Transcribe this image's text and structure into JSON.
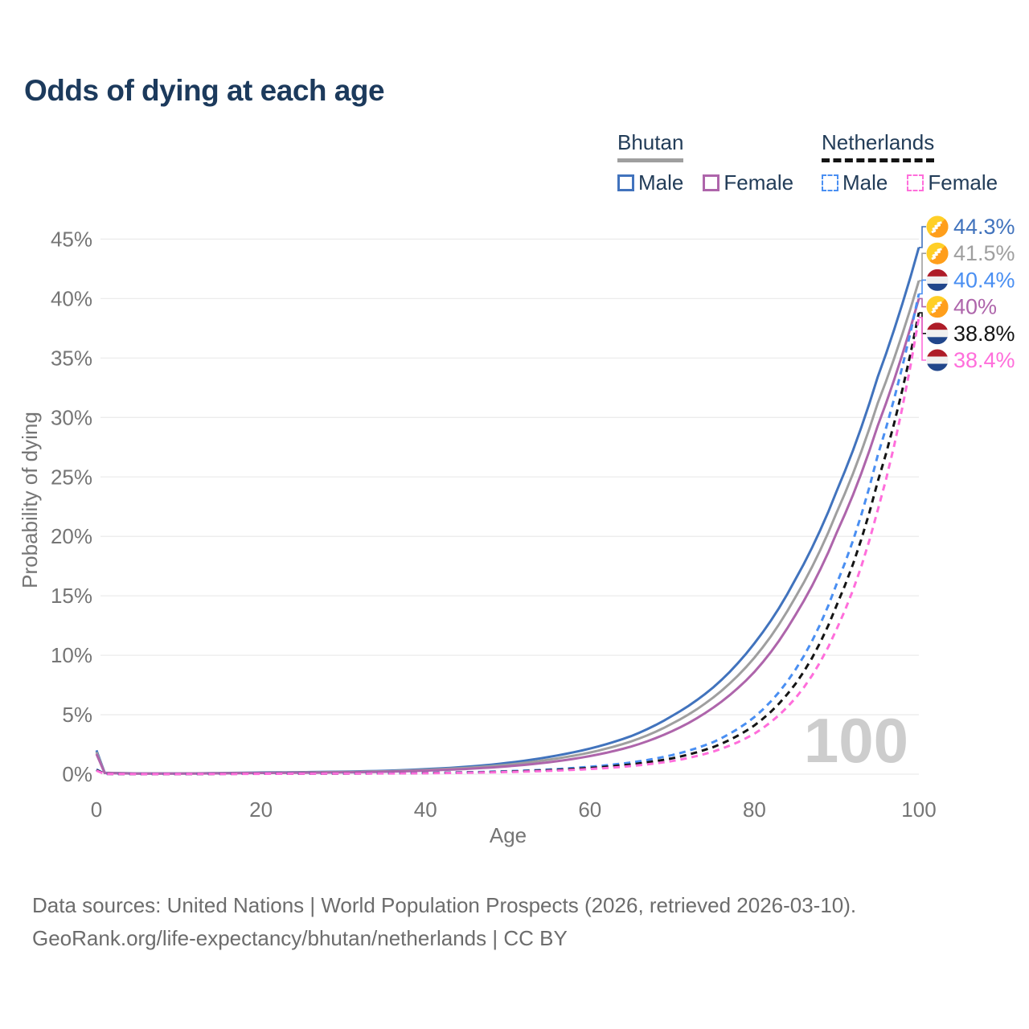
{
  "title": "Odds of dying at each age",
  "legend": {
    "groups": [
      {
        "country": "Bhutan",
        "line_style": "solid",
        "items": [
          {
            "label": "Male"
          },
          {
            "label": "Female"
          }
        ]
      },
      {
        "country": "Netherlands",
        "line_style": "dashed",
        "items": [
          {
            "label": "Male"
          },
          {
            "label": "Female"
          }
        ]
      }
    ]
  },
  "chart_data": {
    "type": "line",
    "title": "Odds of dying at each age",
    "xlabel": "Age",
    "ylabel": "Probability of dying",
    "xlim": [
      0,
      100
    ],
    "ylim": [
      0,
      47
    ],
    "x_ticks": [
      0,
      20,
      40,
      60,
      80,
      100
    ],
    "y_ticks": [
      "0%",
      "5%",
      "10%",
      "15%",
      "20%",
      "25%",
      "30%",
      "35%",
      "40%",
      "45%"
    ],
    "grid": "horizontal",
    "legend_position": "top-right",
    "age_marker": "100",
    "series": [
      {
        "name": "Bhutan — Male",
        "country": "Bhutan",
        "sex": "male",
        "flag": "bt",
        "color": "#4173bd",
        "dash": false,
        "end_label": "44.3%",
        "end_value": 44.3,
        "points": [
          [
            0,
            2.0
          ],
          [
            1,
            0.12
          ],
          [
            5,
            0.06
          ],
          [
            10,
            0.06
          ],
          [
            15,
            0.09
          ],
          [
            20,
            0.14
          ],
          [
            25,
            0.17
          ],
          [
            30,
            0.21
          ],
          [
            35,
            0.28
          ],
          [
            40,
            0.42
          ],
          [
            45,
            0.62
          ],
          [
            50,
            0.95
          ],
          [
            55,
            1.45
          ],
          [
            60,
            2.15
          ],
          [
            65,
            3.2
          ],
          [
            70,
            4.9
          ],
          [
            75,
            7.3
          ],
          [
            80,
            11.0
          ],
          [
            85,
            16.4
          ],
          [
            90,
            23.8
          ],
          [
            95,
            33.4
          ],
          [
            100,
            44.3
          ]
        ]
      },
      {
        "name": "Bhutan — Both sexes",
        "country": "Bhutan",
        "sex": "both",
        "flag": "bt",
        "color": "#9f9f9f",
        "dash": false,
        "end_label": "41.5%",
        "end_value": 41.5,
        "points": [
          [
            0,
            1.85
          ],
          [
            1,
            0.11
          ],
          [
            5,
            0.055
          ],
          [
            10,
            0.055
          ],
          [
            15,
            0.08
          ],
          [
            20,
            0.12
          ],
          [
            25,
            0.15
          ],
          [
            30,
            0.18
          ],
          [
            35,
            0.24
          ],
          [
            40,
            0.36
          ],
          [
            45,
            0.53
          ],
          [
            50,
            0.8
          ],
          [
            55,
            1.22
          ],
          [
            60,
            1.82
          ],
          [
            65,
            2.75
          ],
          [
            70,
            4.25
          ],
          [
            75,
            6.45
          ],
          [
            80,
            9.8
          ],
          [
            85,
            14.9
          ],
          [
            90,
            22.0
          ],
          [
            95,
            31.2
          ],
          [
            100,
            41.5
          ]
        ]
      },
      {
        "name": "Bhutan — Female",
        "country": "Bhutan",
        "sex": "female",
        "flag": "bt",
        "color": "#ae65ab",
        "dash": false,
        "end_label": "40%",
        "end_value": 40.0,
        "points": [
          [
            0,
            1.7
          ],
          [
            1,
            0.1
          ],
          [
            5,
            0.05
          ],
          [
            10,
            0.05
          ],
          [
            15,
            0.07
          ],
          [
            20,
            0.1
          ],
          [
            25,
            0.12
          ],
          [
            30,
            0.15
          ],
          [
            35,
            0.2
          ],
          [
            40,
            0.3
          ],
          [
            45,
            0.44
          ],
          [
            50,
            0.66
          ],
          [
            55,
            1.0
          ],
          [
            60,
            1.52
          ],
          [
            65,
            2.32
          ],
          [
            70,
            3.62
          ],
          [
            75,
            5.6
          ],
          [
            80,
            8.6
          ],
          [
            85,
            13.4
          ],
          [
            90,
            20.3
          ],
          [
            95,
            29.3
          ],
          [
            100,
            40.0
          ]
        ]
      },
      {
        "name": "Netherlands — Male",
        "country": "Netherlands",
        "sex": "male",
        "flag": "nl",
        "color": "#4a8ff2",
        "dash": true,
        "end_label": "40.4%",
        "end_value": 40.4,
        "points": [
          [
            0,
            0.4
          ],
          [
            1,
            0.03
          ],
          [
            5,
            0.01
          ],
          [
            10,
            0.01
          ],
          [
            15,
            0.03
          ],
          [
            20,
            0.04
          ],
          [
            25,
            0.05
          ],
          [
            30,
            0.06
          ],
          [
            35,
            0.08
          ],
          [
            40,
            0.11
          ],
          [
            45,
            0.16
          ],
          [
            50,
            0.25
          ],
          [
            55,
            0.39
          ],
          [
            60,
            0.62
          ],
          [
            65,
            0.98
          ],
          [
            70,
            1.6
          ],
          [
            75,
            2.7
          ],
          [
            80,
            4.8
          ],
          [
            85,
            8.8
          ],
          [
            90,
            16.0
          ],
          [
            95,
            26.8
          ],
          [
            100,
            40.4
          ]
        ]
      },
      {
        "name": "Netherlands — Both sexes",
        "country": "Netherlands",
        "sex": "both",
        "flag": "nl",
        "color": "#141414",
        "dash": true,
        "end_label": "38.8%",
        "end_value": 38.8,
        "points": [
          [
            0,
            0.35
          ],
          [
            1,
            0.025
          ],
          [
            5,
            0.01
          ],
          [
            10,
            0.01
          ],
          [
            15,
            0.025
          ],
          [
            20,
            0.035
          ],
          [
            25,
            0.045
          ],
          [
            30,
            0.055
          ],
          [
            35,
            0.07
          ],
          [
            40,
            0.095
          ],
          [
            45,
            0.14
          ],
          [
            50,
            0.21
          ],
          [
            55,
            0.33
          ],
          [
            60,
            0.52
          ],
          [
            65,
            0.82
          ],
          [
            70,
            1.33
          ],
          [
            75,
            2.28
          ],
          [
            80,
            4.1
          ],
          [
            85,
            7.6
          ],
          [
            90,
            14.2
          ],
          [
            95,
            24.6
          ],
          [
            100,
            38.8
          ]
        ]
      },
      {
        "name": "Netherlands — Female",
        "country": "Netherlands",
        "sex": "female",
        "flag": "nl",
        "color": "#ff6edb",
        "dash": true,
        "end_label": "38.4%",
        "end_value": 38.4,
        "points": [
          [
            0,
            0.3
          ],
          [
            1,
            0.02
          ],
          [
            5,
            0.01
          ],
          [
            10,
            0.01
          ],
          [
            15,
            0.02
          ],
          [
            20,
            0.03
          ],
          [
            25,
            0.04
          ],
          [
            30,
            0.05
          ],
          [
            35,
            0.06
          ],
          [
            40,
            0.08
          ],
          [
            45,
            0.12
          ],
          [
            50,
            0.18
          ],
          [
            55,
            0.28
          ],
          [
            60,
            0.43
          ],
          [
            65,
            0.68
          ],
          [
            70,
            1.1
          ],
          [
            75,
            1.9
          ],
          [
            80,
            3.4
          ],
          [
            85,
            6.4
          ],
          [
            90,
            12.2
          ],
          [
            95,
            22.2
          ],
          [
            100,
            38.4
          ]
        ]
      }
    ]
  },
  "footer": {
    "line1": "Data sources: United Nations | World Population Prospects (2026, retrieved 2026-03-10).",
    "line2": "GeoRank.org/life-expectancy/bhutan/netherlands | CC BY"
  }
}
